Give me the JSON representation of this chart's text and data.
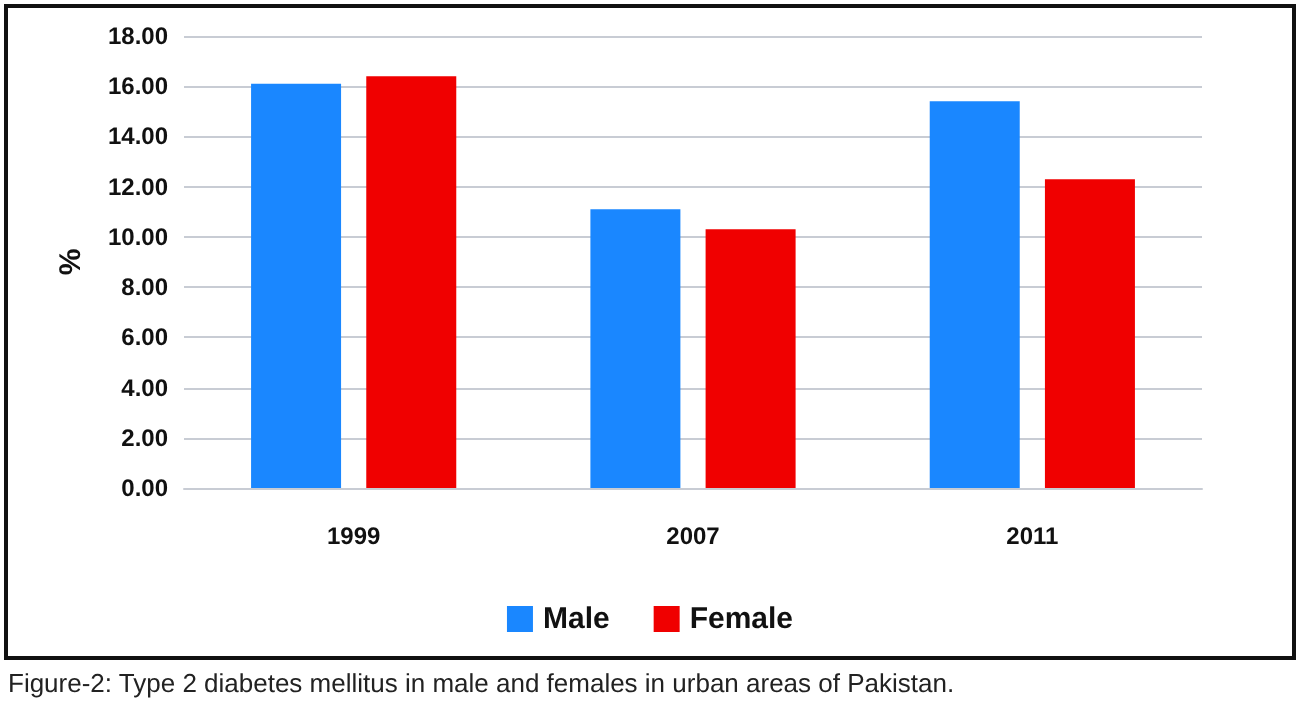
{
  "chart_data": {
    "type": "bar",
    "ylabel": "%",
    "categories": [
      "1999",
      "2007",
      "2011"
    ],
    "series": [
      {
        "name": "Male",
        "color": "#1a87ff",
        "values": [
          16.1,
          11.1,
          15.4
        ]
      },
      {
        "name": "Female",
        "color": "#f00000",
        "values": [
          16.4,
          10.3,
          12.3
        ]
      }
    ],
    "ylim": [
      0,
      18
    ],
    "yticks": [
      {
        "value": 0,
        "label": "0.00"
      },
      {
        "value": 2,
        "label": "2.00"
      },
      {
        "value": 4,
        "label": "4.00"
      },
      {
        "value": 6,
        "label": "6.00"
      },
      {
        "value": 8,
        "label": "8.00"
      },
      {
        "value": 10,
        "label": "10.00"
      },
      {
        "value": 12,
        "label": "12.00"
      },
      {
        "value": 14,
        "label": "14.00"
      },
      {
        "value": 16,
        "label": "16.00"
      },
      {
        "value": 18,
        "label": "18.00"
      }
    ],
    "grid": "y",
    "legend": "bottom",
    "annotations": [
      "Figure-2: Type 2 diabetes mellitus in male and females in urban areas of Pakistan."
    ]
  }
}
